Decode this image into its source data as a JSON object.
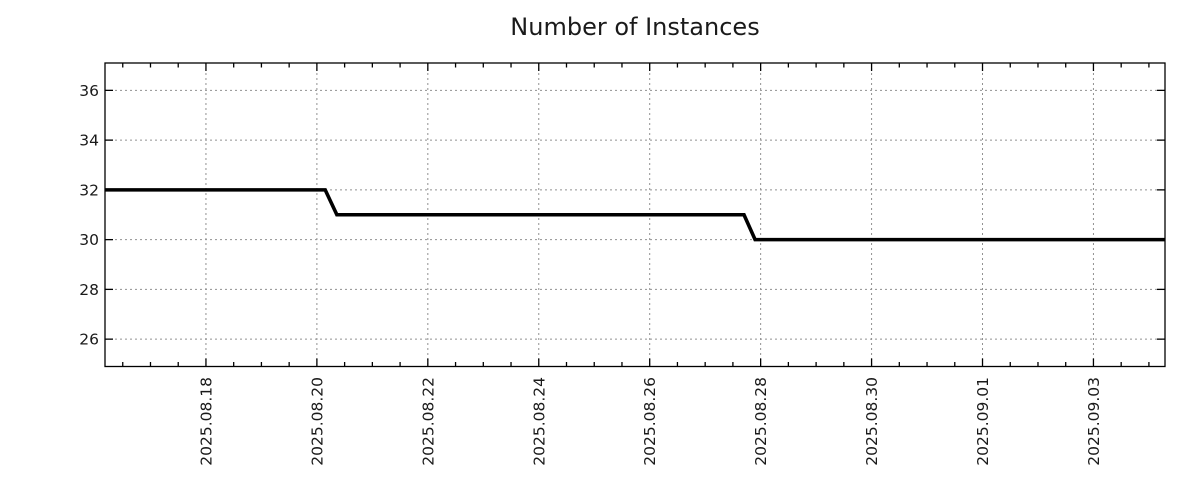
{
  "chart_data": {
    "type": "line",
    "step_style": true,
    "title": "Number of Instances",
    "legend": null,
    "background_color": "#ffffff",
    "axis_color": "#000000",
    "text_color": "#1a1a1a",
    "grid": {
      "style": "dotted",
      "color": "#919191"
    },
    "x_axis": {
      "description": "time axis, days measured relative to 2025.08.18 00:00",
      "range_days": [
        -1.82,
        17.29
      ],
      "minor_tick_interval_days": 0.5,
      "major_ticks": [
        {
          "day": 0,
          "label": "2025.08.18"
        },
        {
          "day": 2,
          "label": "2025.08.20"
        },
        {
          "day": 4,
          "label": "2025.08.22"
        },
        {
          "day": 6,
          "label": "2025.08.24"
        },
        {
          "day": 8,
          "label": "2025.08.26"
        },
        {
          "day": 10,
          "label": "2025.08.28"
        },
        {
          "day": 12,
          "label": "2025.08.30"
        },
        {
          "day": 14,
          "label": "2025.09.01"
        },
        {
          "day": 16,
          "label": "2025.09.03"
        }
      ]
    },
    "y_axis": {
      "range": [
        24.9,
        37.1
      ],
      "major_ticks": [
        26,
        28,
        30,
        32,
        34,
        36
      ],
      "tick_labels": [
        "26",
        "28",
        "30",
        "32",
        "34",
        "36"
      ]
    },
    "series": [
      {
        "name": "instances",
        "color": "#000000",
        "line_width": 3.6,
        "points": [
          {
            "day": -1.82,
            "value": 32
          },
          {
            "day": 2.15,
            "value": 32
          },
          {
            "day": 2.36,
            "value": 31
          },
          {
            "day": 9.7,
            "value": 31
          },
          {
            "day": 9.9,
            "value": 30
          },
          {
            "day": 17.29,
            "value": 30
          }
        ]
      }
    ]
  }
}
